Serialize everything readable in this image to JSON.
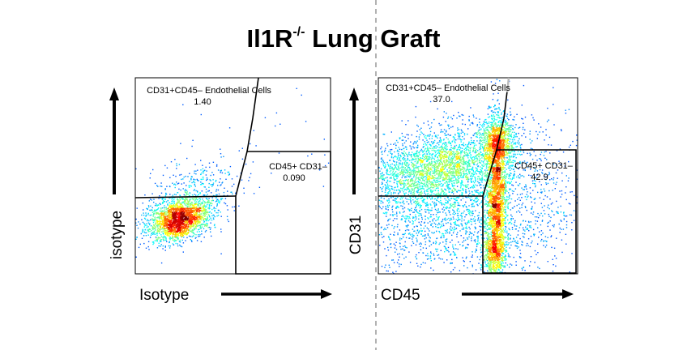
{
  "title": {
    "main": "Il1R",
    "superscript": "-/-",
    "rest": " Lung Graft"
  },
  "colors": {
    "line": "#000000",
    "divider": "#888888",
    "density_low": "#1f2cff",
    "density_high": "#e01010"
  },
  "chart_data": [
    {
      "type": "scatter",
      "subtype": "flow-cytometry-density",
      "xlabel": "Isotype",
      "ylabel": "isotype",
      "gates": [
        {
          "name": "CD31+CD45– Endothelial Cells",
          "value": "1.40"
        },
        {
          "name": "CD45+ CD31–",
          "value": "0.090"
        }
      ],
      "populations": [
        {
          "center": [
            0.22,
            0.72
          ],
          "spread": [
            0.08,
            0.05
          ],
          "angle": -0.35,
          "count": 2200
        },
        {
          "center": [
            0.3,
            0.6
          ],
          "spread": [
            0.12,
            0.09
          ],
          "angle": -0.3,
          "count": 400
        },
        {
          "center": [
            0.6,
            0.35
          ],
          "spread": [
            0.25,
            0.2
          ],
          "angle": 0,
          "count": 35
        }
      ]
    },
    {
      "type": "scatter",
      "subtype": "flow-cytometry-density",
      "xlabel": "CD45",
      "ylabel": "CD31",
      "gates": [
        {
          "name": "CD31+CD45– Endothelial Cells",
          "value": "37.0"
        },
        {
          "name": "CD45+ CD31–",
          "value": "42.9"
        }
      ],
      "populations": [
        {
          "center": [
            0.33,
            0.45
          ],
          "spread": [
            0.19,
            0.1
          ],
          "angle": -0.25,
          "count": 2400
        },
        {
          "center": [
            0.24,
            0.45
          ],
          "spread": [
            0.17,
            0.06
          ],
          "angle": -0.2,
          "count": 500
        },
        {
          "center": [
            0.6,
            0.32
          ],
          "spread": [
            0.04,
            0.06
          ],
          "angle": 0,
          "count": 800
        },
        {
          "center": [
            0.59,
            0.62
          ],
          "spread": [
            0.025,
            0.2
          ],
          "angle": 0,
          "count": 2200
        },
        {
          "center": [
            0.58,
            0.88
          ],
          "spread": [
            0.03,
            0.06
          ],
          "angle": 0,
          "count": 500
        },
        {
          "center": [
            0.35,
            0.72
          ],
          "spread": [
            0.28,
            0.14
          ],
          "angle": 0,
          "count": 1600
        },
        {
          "center": [
            0.8,
            0.6
          ],
          "spread": [
            0.12,
            0.22
          ],
          "angle": 0,
          "count": 300
        }
      ]
    }
  ]
}
